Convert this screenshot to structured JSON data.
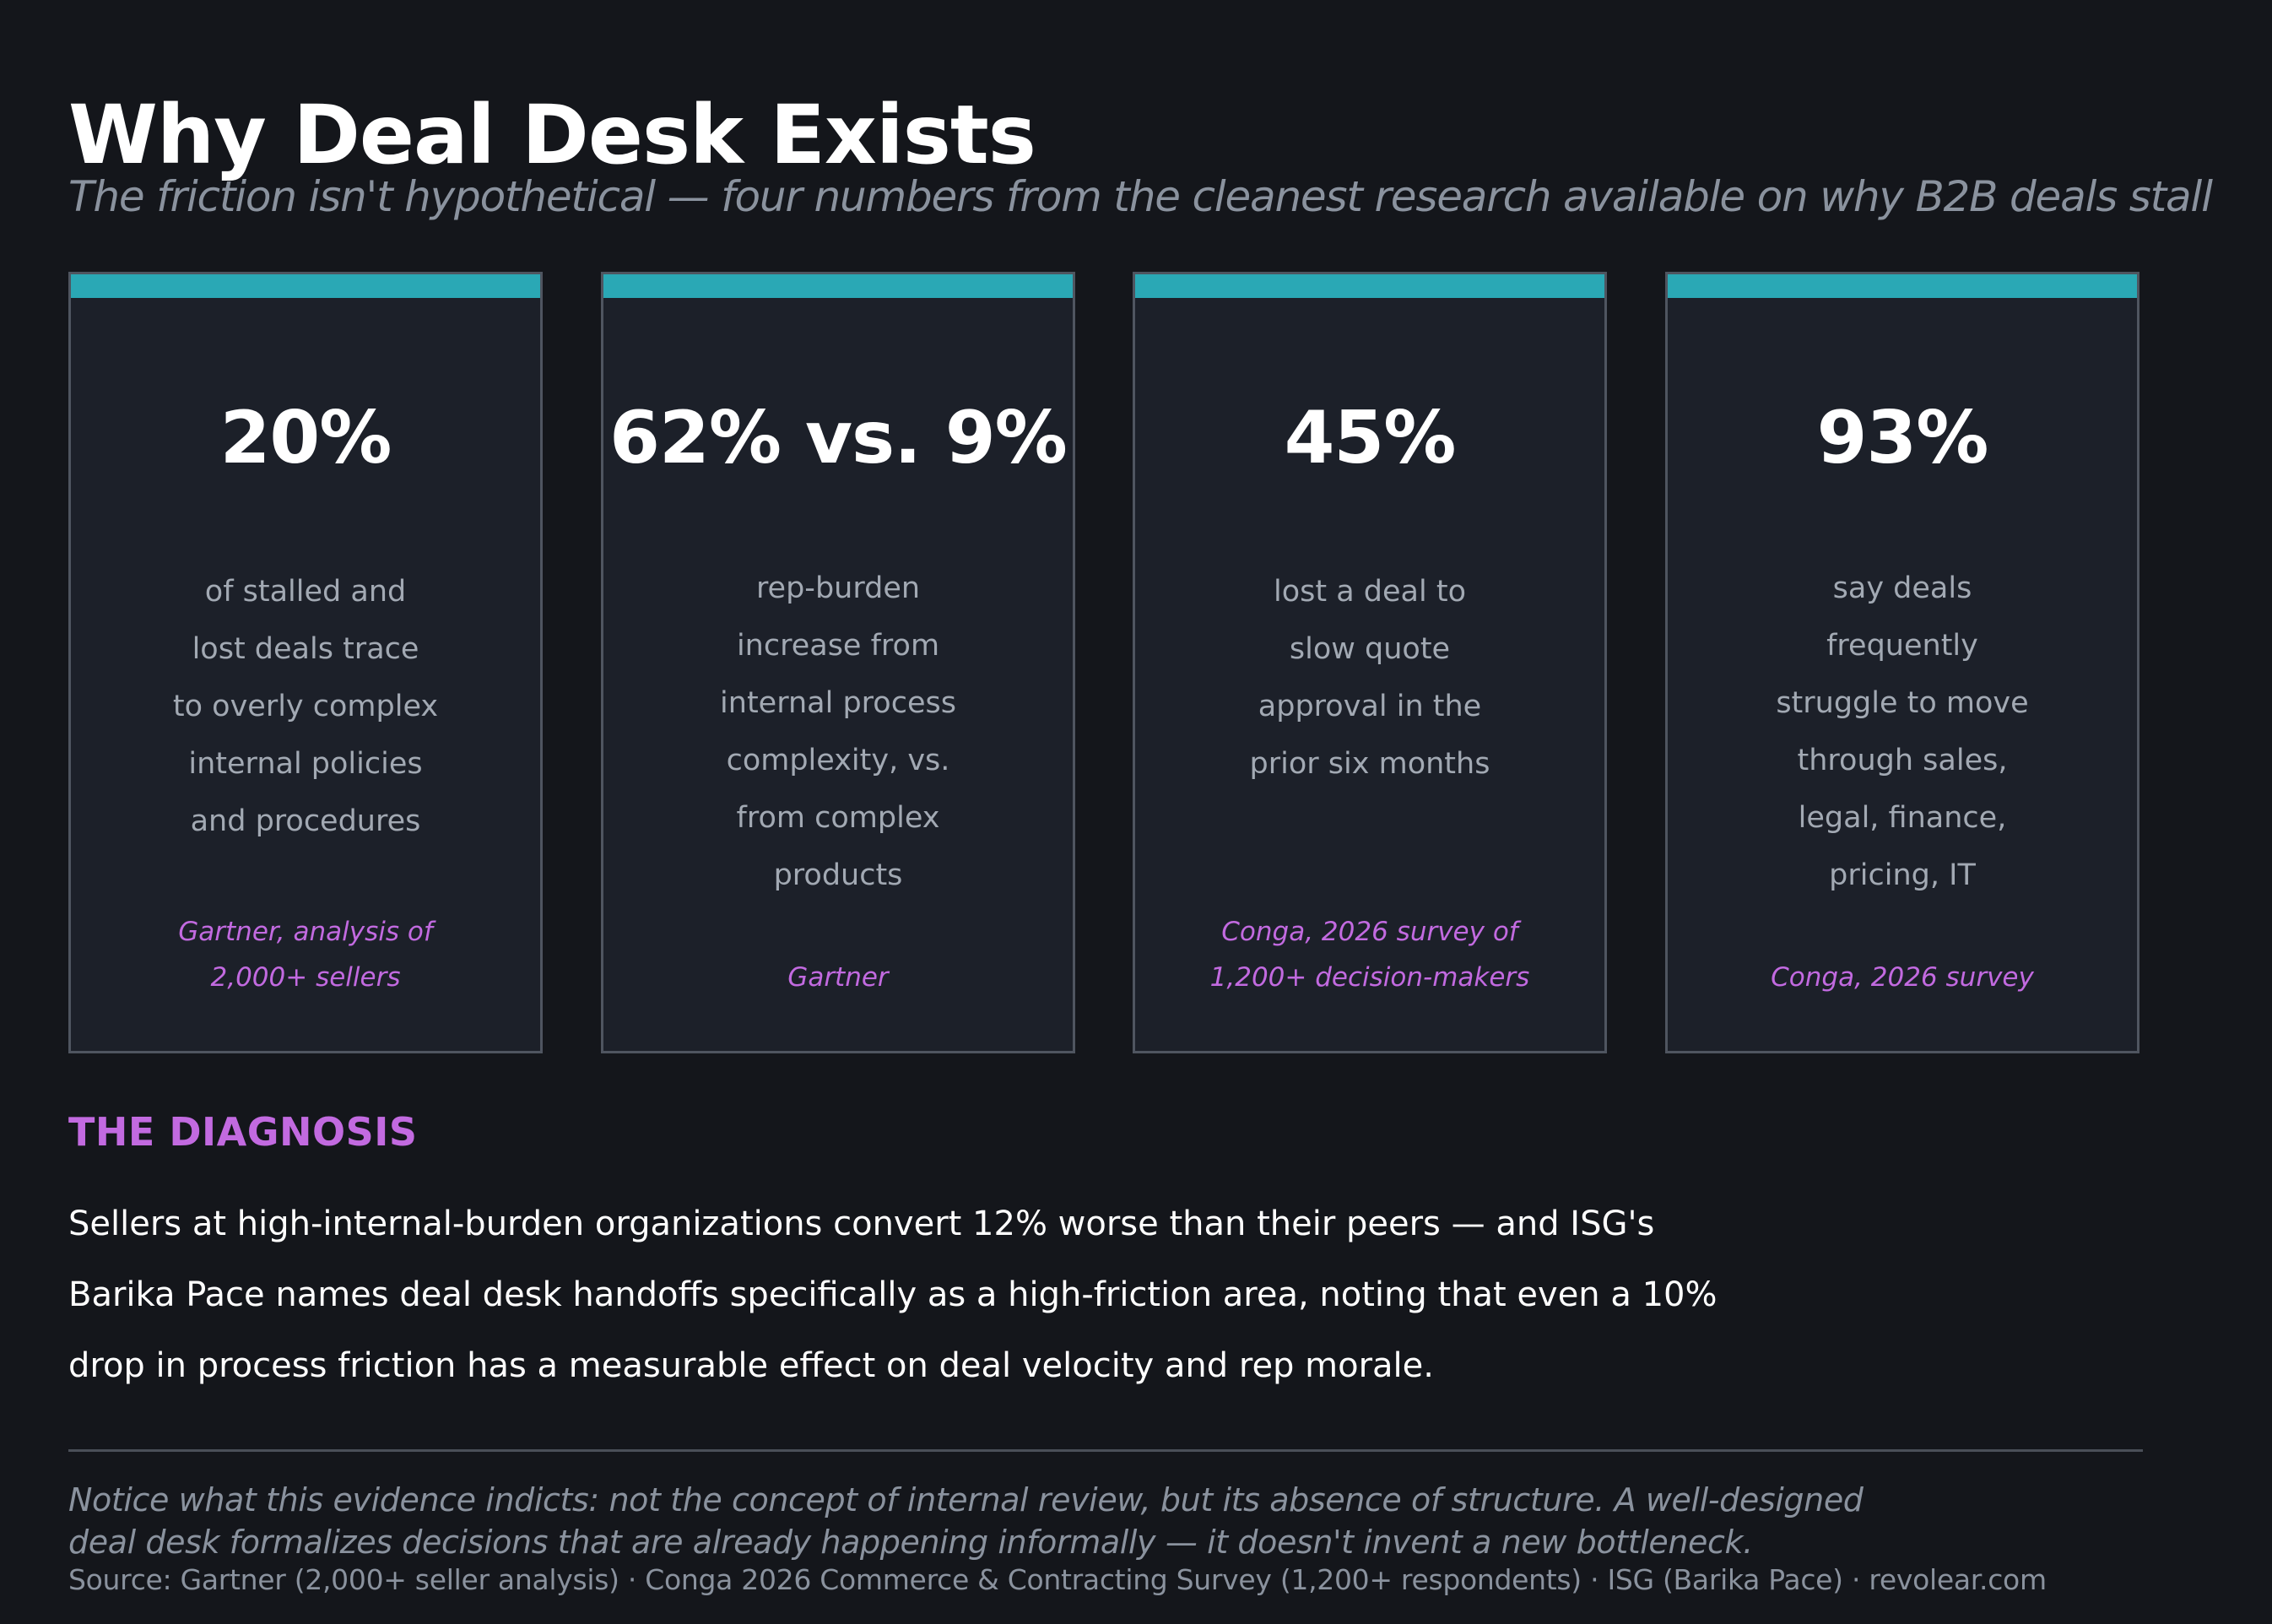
{
  "title": "Why Deal Desk Exists",
  "subtitle": "The friction isn't hypothetical — four numbers from the cleanest research available on why B2B deals stall",
  "colors": {
    "background": "#14161b",
    "card_background": "#1c2029",
    "card_border": "#4f5560",
    "accent_teal": "#2aa8b5",
    "accent_purple": "#c26ae0",
    "muted_text": "#8a929e"
  },
  "cards": [
    {
      "stat": "20%",
      "description_lines": [
        "of stalled and",
        "lost deals trace",
        "to overly complex",
        "internal policies",
        "and procedures"
      ],
      "source_lines": [
        "Gartner, analysis of",
        "2,000+ sellers"
      ]
    },
    {
      "stat": "62% vs. 9%",
      "description_lines": [
        "rep-burden",
        "increase from",
        "internal process",
        "complexity, vs.",
        "from complex",
        "products"
      ],
      "source_lines": [
        "Gartner"
      ]
    },
    {
      "stat": "45%",
      "description_lines": [
        "lost a deal to",
        "slow quote",
        "approval in the",
        "prior six months"
      ],
      "source_lines": [
        "Conga, 2026 survey of",
        "1,200+ decision-makers"
      ]
    },
    {
      "stat": "93%",
      "description_lines": [
        "say deals",
        "frequently",
        "struggle to move",
        "through sales,",
        "legal, finance,",
        "pricing, IT"
      ],
      "source_lines": [
        "Conga, 2026 survey"
      ]
    }
  ],
  "diagnosis": {
    "label": "THE DIAGNOSIS",
    "lines": [
      "Sellers at high-internal-burden organizations convert 12% worse than their peers — and ISG's",
      "Barika Pace names deal desk handoffs specifically as a high-friction area, noting that even a 10%",
      "drop in process friction has a measurable effect on deal velocity and rep morale."
    ]
  },
  "note_lines": [
    "Notice what this evidence indicts: not the concept of internal review, but its absence of structure. A well-designed",
    "deal desk formalizes decisions that are already happening informally — it doesn't invent a new bottleneck."
  ],
  "source": "Source: Gartner (2,000+ seller analysis) · Conga 2026 Commerce & Contracting Survey (1,200+ respondents) · ISG (Barika Pace) · revolear.com"
}
